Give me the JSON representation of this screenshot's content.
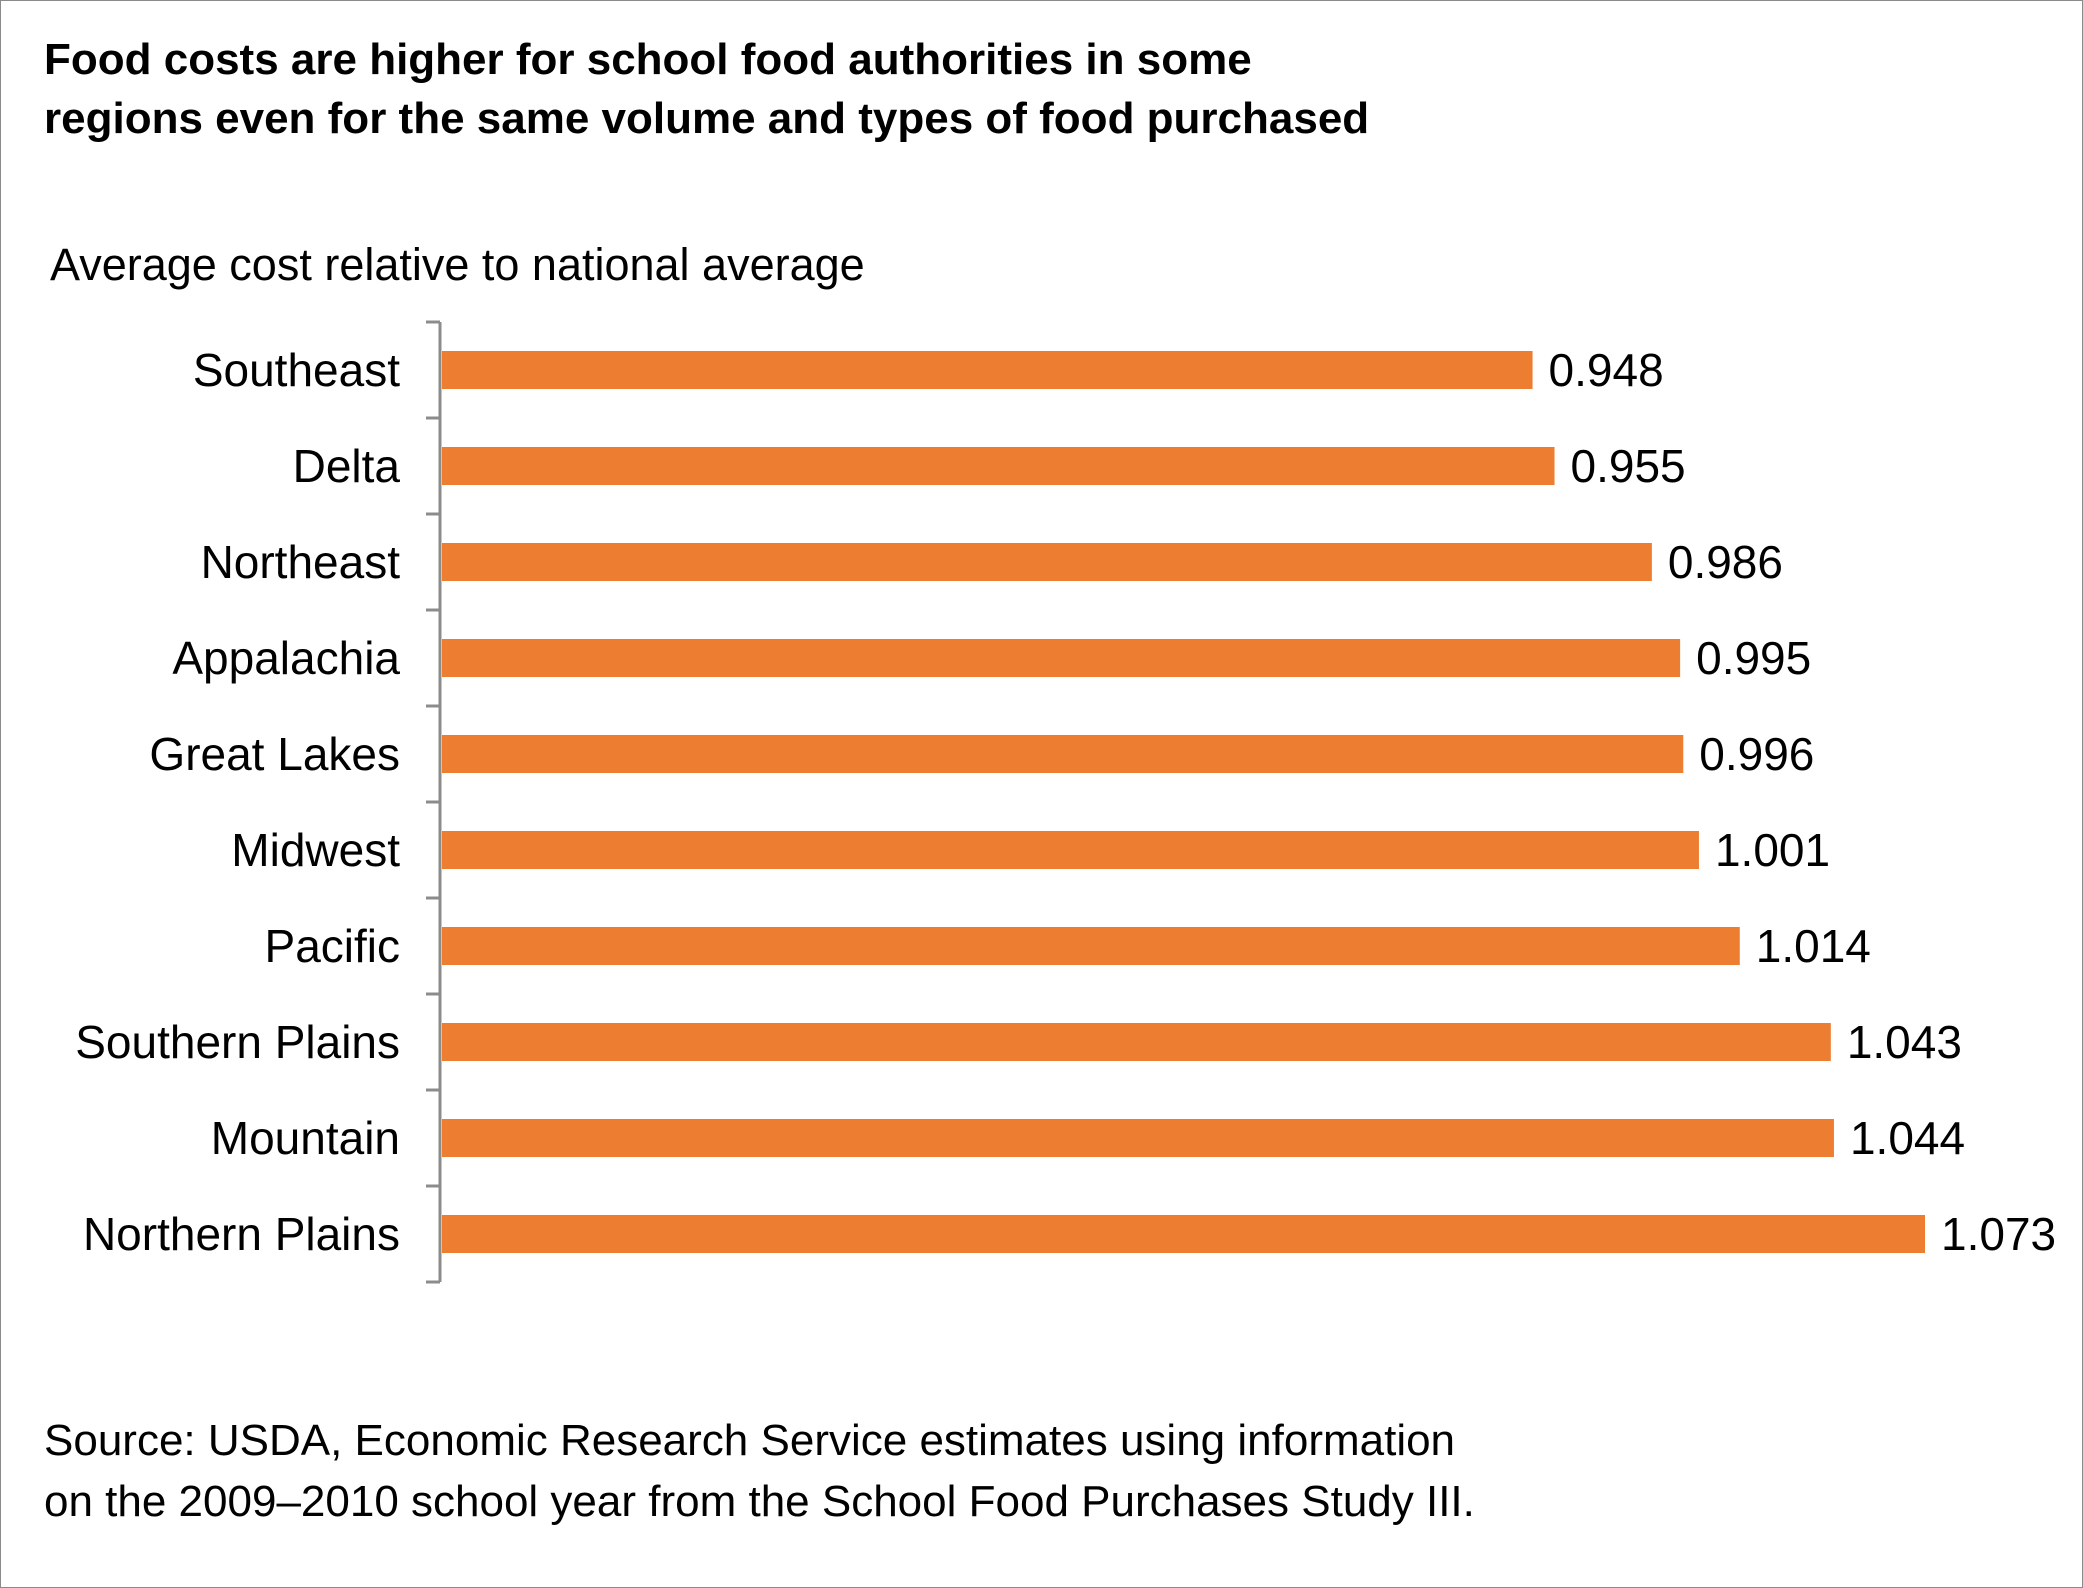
{
  "header": {
    "title": "Food costs are higher for school food authorities in some\nregions even for the same volume and types of food purchased"
  },
  "footer": {
    "source": "Source: USDA, Economic Research Service estimates using information\non the 2009–2010 school year from the School Food Purchases Study III."
  },
  "chart_data": {
    "type": "bar",
    "orientation": "horizontal",
    "title": "Food costs are higher for school food authorities in some regions even for the same volume and types of food purchased",
    "xlabel": "Average cost relative to national average",
    "ylabel": "",
    "categories": [
      "Southeast",
      "Delta",
      "Northeast",
      "Appalachia",
      "Great Lakes",
      "Midwest",
      "Pacific",
      "Southern Plains",
      "Mountain",
      "Northern Plains"
    ],
    "values": [
      0.948,
      0.955,
      0.986,
      0.995,
      0.996,
      1.001,
      1.014,
      1.043,
      1.044,
      1.073
    ],
    "value_labels": [
      "0.948",
      "0.955",
      "0.986",
      "0.995",
      "0.996",
      "1.001",
      "1.014",
      "1.043",
      "1.044",
      "1.073"
    ],
    "bar_color": "#ed7d31",
    "axis_color": "#8c8c8c",
    "grid": false,
    "legend": "none"
  }
}
